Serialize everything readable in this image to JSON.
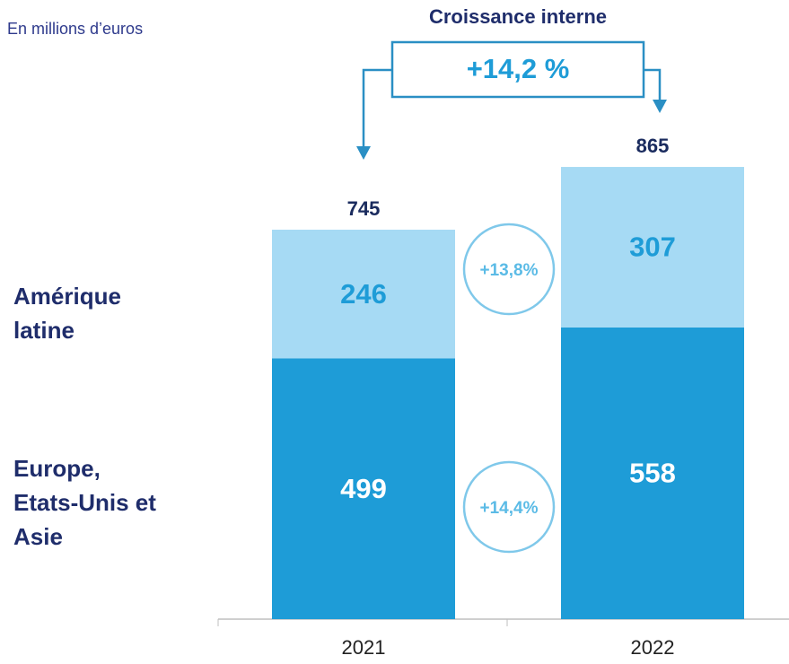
{
  "chart_data": {
    "type": "stacked-bar",
    "subtitle": "En millions d’euros",
    "categories": [
      "2021",
      "2022"
    ],
    "series": [
      {
        "name": "Europe, Etats-Unis et Asie",
        "color": "#1e9cd7",
        "label_color": "#ffffff",
        "values": [
          499,
          558
        ],
        "growth": "+14,4%"
      },
      {
        "name": "Amérique latine",
        "color": "#a6daf4",
        "label_color": "#1e9cd7",
        "values": [
          246,
          307
        ],
        "growth": "+13,8%"
      }
    ],
    "totals": [
      745,
      865
    ],
    "growth_title": "Croissance interne",
    "growth_value": "+14,2 %"
  }
}
